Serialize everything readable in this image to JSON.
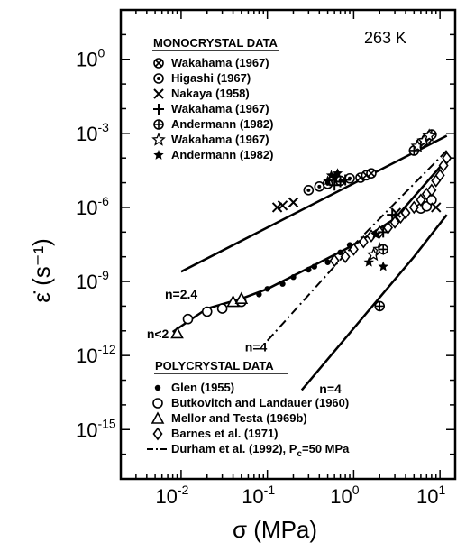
{
  "chart_data": {
    "type": "scatter",
    "title": "",
    "temperature_label": "263 K",
    "xlabel": "σ (MPa)",
    "ylabel": "ε̇ (s⁻¹)",
    "x_scale": "log",
    "y_scale": "log",
    "xlim": [
      0.002,
      15
    ],
    "ylim": [
      1e-17,
      100.0
    ],
    "x_ticks": [
      {
        "value": 0.01,
        "base": "10",
        "exp": "-2"
      },
      {
        "value": 0.1,
        "base": "10",
        "exp": "-1"
      },
      {
        "value": 1,
        "base": "10",
        "exp": "0"
      },
      {
        "value": 10,
        "base": "10",
        "exp": "1"
      }
    ],
    "y_ticks": [
      {
        "value": 1,
        "base": "10",
        "exp": "0"
      },
      {
        "value": 0.001,
        "base": "10",
        "exp": "-3"
      },
      {
        "value": 1e-06,
        "base": "10",
        "exp": "-6"
      },
      {
        "value": 1e-09,
        "base": "10",
        "exp": "-9"
      },
      {
        "value": 1e-12,
        "base": "10",
        "exp": "-12"
      },
      {
        "value": 1e-15,
        "base": "10",
        "exp": "-15"
      }
    ],
    "mono_legend_title": "MONOCRYSTAL DATA",
    "mono_series": [
      {
        "name": "Wakahama (1967)",
        "marker": "circle-x",
        "points": [
          [
            1.2,
            1.6e-05
          ],
          [
            1.4,
            2e-05
          ],
          [
            1.6,
            2.4e-05
          ]
        ]
      },
      {
        "name": "Higashi (1967)",
        "marker": "circle-dot",
        "points": [
          [
            0.3,
            5e-06
          ],
          [
            0.4,
            7e-06
          ],
          [
            0.5,
            9e-06
          ],
          [
            0.7,
            1.2e-05
          ],
          [
            0.9,
            1.5e-05
          ]
        ]
      },
      {
        "name": "Nakaya (1958)",
        "marker": "x",
        "points": [
          [
            0.13,
            1e-06
          ],
          [
            0.15,
            1.2e-06
          ],
          [
            0.2,
            1.6e-06
          ]
        ]
      },
      {
        "name": "Wakahama (1967)",
        "marker": "plus",
        "points": [
          [
            0.6,
            8e-06
          ],
          [
            0.7,
            1.1e-05
          ],
          [
            0.8,
            1.3e-05
          ]
        ]
      },
      {
        "name": "Andermann (1982)",
        "marker": "circle-plus",
        "points": [
          [
            5,
            0.0002
          ],
          [
            6,
            0.0004
          ],
          [
            7,
            0.0006
          ],
          [
            8,
            0.0009
          ]
        ]
      },
      {
        "name": "Wakahama (1967)",
        "marker": "star-open",
        "points": [
          [
            5.5,
            0.0003
          ],
          [
            6.5,
            0.0005
          ],
          [
            7.5,
            0.0008
          ]
        ]
      },
      {
        "name": "Andermann (1982)",
        "marker": "star",
        "points": [
          [
            0.5,
            1.2e-05
          ],
          [
            0.6,
            1.6e-05
          ],
          [
            0.55,
            2e-05
          ],
          [
            0.65,
            2.4e-05
          ]
        ]
      }
    ],
    "poly_legend_title": "POLYCRYSTAL DATA",
    "poly_series": [
      {
        "name": "Glen (1955)",
        "marker": "dot",
        "points": [
          [
            0.08,
            3e-10
          ],
          [
            0.1,
            5e-10
          ],
          [
            0.15,
            8e-10
          ],
          [
            0.2,
            1.5e-09
          ],
          [
            0.3,
            3e-09
          ],
          [
            0.35,
            4e-09
          ],
          [
            0.5,
            6e-09
          ],
          [
            0.7,
            1.5e-08
          ],
          [
            0.9,
            3e-08
          ]
        ]
      },
      {
        "name": "Butkovitch and Landauer (1960)",
        "marker": "circle",
        "points": [
          [
            0.012,
            3e-11
          ],
          [
            0.02,
            6e-11
          ],
          [
            0.03,
            8e-11
          ],
          [
            0.05,
            1.5e-10
          ],
          [
            6,
            9e-07
          ],
          [
            7,
            1.1e-06
          ],
          [
            8,
            2e-06
          ]
        ]
      },
      {
        "name": "Mellor and Testa (1969b)",
        "marker": "triangle",
        "points": [
          [
            0.009,
            8e-12
          ],
          [
            0.04,
            1.5e-10
          ],
          [
            0.05,
            2e-10
          ]
        ]
      },
      {
        "name": "Barnes et al. (1971)",
        "marker": "diamond",
        "points": [
          [
            0.6,
            7e-09
          ],
          [
            0.8,
            1e-08
          ],
          [
            1.0,
            2e-08
          ],
          [
            1.3,
            4e-08
          ],
          [
            1.6,
            7e-08
          ],
          [
            2.0,
            1e-07
          ],
          [
            2.5,
            1.5e-07
          ],
          [
            3,
            2.5e-07
          ],
          [
            3.5,
            4e-07
          ],
          [
            4,
            6e-07
          ],
          [
            5,
            1e-06
          ],
          [
            6,
            2e-06
          ],
          [
            7,
            3.5e-06
          ],
          [
            8,
            5e-06
          ],
          [
            9,
            1.2e-05
          ],
          [
            10,
            2e-05
          ],
          [
            11,
            5e-05
          ],
          [
            12,
            0.0001
          ]
        ]
      },
      {
        "name": "Durham et al. (1992), P",
        "name_sub": "c",
        "name_tail": "=50 MPa",
        "marker": "dashdot",
        "points": []
      }
    ],
    "extra_points": [
      {
        "marker": "star",
        "points": [
          [
            1.5,
            6e-09
          ],
          [
            2.2,
            4e-09
          ],
          [
            1.8,
            8e-08
          ]
        ]
      },
      {
        "marker": "star-open",
        "points": [
          [
            1.7,
            1.2e-08
          ],
          [
            2.0,
            2e-08
          ]
        ]
      },
      {
        "marker": "plus",
        "points": [
          [
            2.2,
            1e-07
          ],
          [
            2.8,
            5e-07
          ]
        ]
      },
      {
        "marker": "x",
        "points": [
          [
            3.1,
            6e-07
          ],
          [
            9,
            1e-06
          ]
        ]
      },
      {
        "marker": "circle-plus",
        "points": [
          [
            2.0,
            1e-10
          ],
          [
            2.2,
            2e-08
          ]
        ]
      }
    ],
    "lines": [
      {
        "name": "mono-fit",
        "style": "solid",
        "points": [
          [
            0.01,
            2.5e-09
          ],
          [
            12,
            0.0008
          ]
        ]
      },
      {
        "name": "poly-fit",
        "style": "solid",
        "points": [
          [
            0.008,
            9e-12
          ],
          [
            0.02,
            8e-11
          ],
          [
            0.05,
            2e-10
          ],
          [
            0.1,
            5e-10
          ],
          [
            0.3,
            3.5e-09
          ],
          [
            1,
            3e-08
          ],
          [
            3,
            3.5e-07
          ],
          [
            12,
            9e-05
          ]
        ]
      },
      {
        "name": "durham",
        "style": "dashdot",
        "points": [
          [
            0.1,
            4e-12
          ],
          [
            1,
            3e-08
          ],
          [
            12,
            0.0002
          ]
        ]
      },
      {
        "name": "n4-line",
        "style": "solid",
        "points": [
          [
            0.25,
            4e-14
          ],
          [
            5,
            1e-08
          ],
          [
            12,
            5e-07
          ]
        ]
      }
    ],
    "annotations": [
      {
        "text": "n=2.4",
        "at": [
          0.0065,
          2e-10
        ]
      },
      {
        "text": "n<2",
        "at": [
          0.004,
          5e-12
        ]
      },
      {
        "text": "n=4",
        "at": [
          0.055,
          1.5e-12
        ]
      },
      {
        "text": "n=4",
        "at": [
          0.4,
          3e-14
        ]
      }
    ]
  }
}
